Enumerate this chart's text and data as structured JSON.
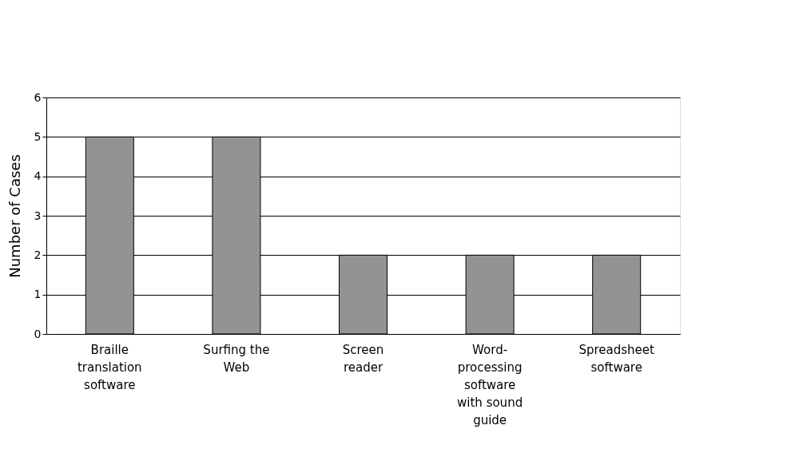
{
  "chart_data": {
    "type": "bar",
    "ylabel": "Number of Cases",
    "categories": [
      "Braille translation software",
      "Surfing the Web",
      "Screen reader",
      "Word-processing software with sound guide",
      "Spreadsheet software"
    ],
    "values": [
      5,
      5,
      2,
      2,
      2
    ],
    "color": "#939393",
    "ylim": [
      0,
      6
    ],
    "yticks": [
      0,
      1,
      2,
      3,
      4,
      5,
      6
    ],
    "grid": "y"
  }
}
